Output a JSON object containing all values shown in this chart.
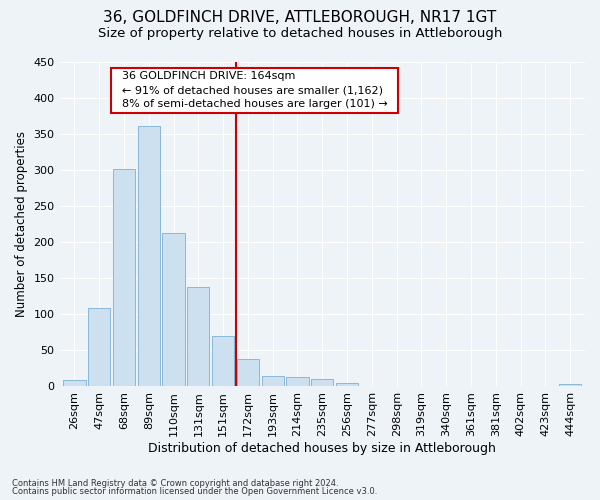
{
  "title": "36, GOLDFINCH DRIVE, ATTLEBOROUGH, NR17 1GT",
  "subtitle": "Size of property relative to detached houses in Attleborough",
  "xlabel": "Distribution of detached houses by size in Attleborough",
  "ylabel": "Number of detached properties",
  "bar_labels": [
    "26sqm",
    "47sqm",
    "68sqm",
    "89sqm",
    "110sqm",
    "131sqm",
    "151sqm",
    "172sqm",
    "193sqm",
    "214sqm",
    "235sqm",
    "256sqm",
    "277sqm",
    "298sqm",
    "319sqm",
    "340sqm",
    "361sqm",
    "381sqm",
    "402sqm",
    "423sqm",
    "444sqm"
  ],
  "bar_values": [
    9,
    108,
    301,
    361,
    213,
    138,
    70,
    38,
    15,
    13,
    11,
    5,
    0,
    0,
    0,
    0,
    0,
    0,
    0,
    0,
    4
  ],
  "bar_color": "#cce0f0",
  "bar_edge_color": "#7ab0d4",
  "ylim": [
    0,
    450
  ],
  "vline_index": 7,
  "vline_color": "#cc0000",
  "annotation_title": "36 GOLDFINCH DRIVE: 164sqm",
  "annotation_line1": "← 91% of detached houses are smaller (1,162)",
  "annotation_line2": "8% of semi-detached houses are larger (101) →",
  "annotation_box_facecolor": "#ffffff",
  "annotation_box_edgecolor": "#cc0000",
  "footer_line1": "Contains HM Land Registry data © Crown copyright and database right 2024.",
  "footer_line2": "Contains public sector information licensed under the Open Government Licence v3.0.",
  "background_color": "#eef3f8",
  "grid_color": "#ffffff",
  "title_fontsize": 11,
  "subtitle_fontsize": 9.5,
  "xlabel_fontsize": 9,
  "ylabel_fontsize": 8.5,
  "tick_fontsize": 8,
  "annotation_fontsize": 8,
  "footer_fontsize": 6
}
